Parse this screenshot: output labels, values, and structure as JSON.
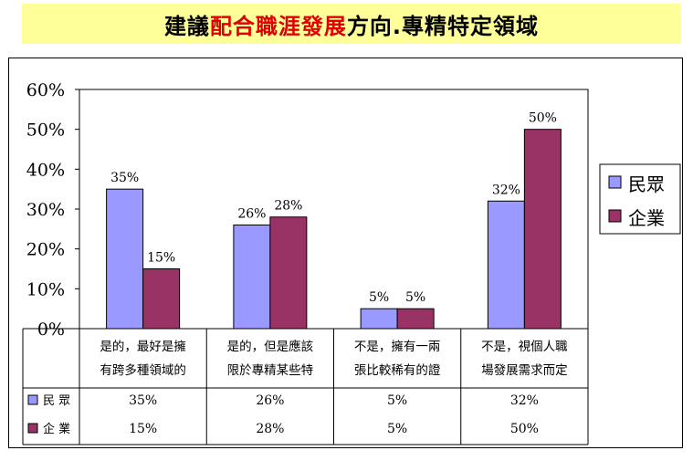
{
  "title": {
    "part1": "建議",
    "highlight": "配合職涯發展",
    "part2": "方向.專精特定領域"
  },
  "colors": {
    "series1": "#9999ff",
    "series2": "#993366",
    "title_bg": "#ffff99",
    "title_highlight": "#e00000"
  },
  "chart_data": {
    "type": "bar",
    "categories": [
      [
        "是的，最好是擁",
        "有跨多種領域的"
      ],
      [
        "是的，但是應該",
        "限於專精某些特"
      ],
      [
        "不是，擁有一兩",
        "張比較稀有的證"
      ],
      [
        "不是，視個人職",
        "場發展需求而定"
      ]
    ],
    "series": [
      {
        "name": "民眾",
        "values": [
          35,
          26,
          5,
          32
        ],
        "color": "#9999ff"
      },
      {
        "name": "企業",
        "values": [
          15,
          28,
          5,
          50
        ],
        "color": "#993366"
      }
    ],
    "ylim": [
      0,
      60
    ],
    "yticks": [
      "0%",
      "10%",
      "20%",
      "30%",
      "40%",
      "50%",
      "60%"
    ],
    "data_labels": [
      [
        "35%",
        "26%",
        "5%",
        "32%"
      ],
      [
        "15%",
        "28%",
        "5%",
        "50%"
      ]
    ],
    "legend_position": "right",
    "data_table": true
  }
}
